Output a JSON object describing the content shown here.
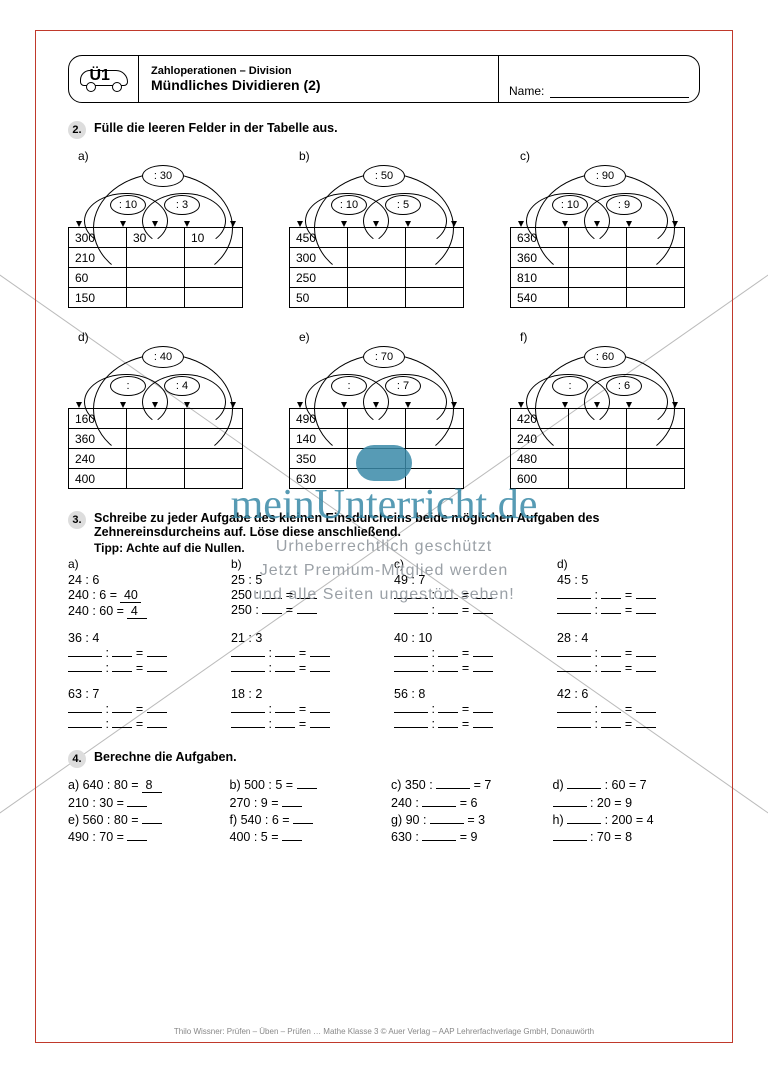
{
  "header": {
    "badge": "Ü1",
    "subtitle": "Zahloperationen – Division",
    "title": "Mündliches Dividieren (2)",
    "name_label": "Name:"
  },
  "task2": {
    "number": "2.",
    "instruction": "Fülle die leeren Felder in der Tabelle aus.",
    "blocks": [
      {
        "label": "a)",
        "top": ": 30",
        "midL": ": 10",
        "midR": ": 3",
        "rows": [
          [
            "300",
            "30",
            "10"
          ],
          [
            "210",
            "",
            ""
          ],
          [
            "60",
            "",
            ""
          ],
          [
            "150",
            "",
            ""
          ]
        ]
      },
      {
        "label": "b)",
        "top": ": 50",
        "midL": ": 10",
        "midR": ": 5",
        "rows": [
          [
            "450",
            "",
            ""
          ],
          [
            "300",
            "",
            ""
          ],
          [
            "250",
            "",
            ""
          ],
          [
            "50",
            "",
            ""
          ]
        ]
      },
      {
        "label": "c)",
        "top": ": 90",
        "midL": ": 10",
        "midR": ": 9",
        "rows": [
          [
            "630",
            "",
            ""
          ],
          [
            "360",
            "",
            ""
          ],
          [
            "810",
            "",
            ""
          ],
          [
            "540",
            "",
            ""
          ]
        ]
      },
      {
        "label": "d)",
        "top": ": 40",
        "midL": ":",
        "midR": ": 4",
        "rows": [
          [
            "160",
            "",
            ""
          ],
          [
            "360",
            "",
            ""
          ],
          [
            "240",
            "",
            ""
          ],
          [
            "400",
            "",
            ""
          ]
        ]
      },
      {
        "label": "e)",
        "top": ": 70",
        "midL": ":",
        "midR": ": 7",
        "rows": [
          [
            "490",
            "",
            ""
          ],
          [
            "140",
            "",
            ""
          ],
          [
            "350",
            "",
            ""
          ],
          [
            "630",
            "",
            ""
          ]
        ]
      },
      {
        "label": "f)",
        "top": ": 60",
        "midL": ":",
        "midR": ": 6",
        "rows": [
          [
            "420",
            "",
            ""
          ],
          [
            "240",
            "",
            ""
          ],
          [
            "480",
            "",
            ""
          ],
          [
            "600",
            "",
            ""
          ]
        ]
      }
    ]
  },
  "task3": {
    "number": "3.",
    "instruction": "Schreibe zu jeder Aufgabe des kleinen Einsdurcheins beide möglichen Aufgaben des Zehnereinsdurcheins auf. Löse diese anschließend.",
    "tip": "Tipp: Achte auf die Nullen.",
    "cols": [
      {
        "sub": "a)",
        "base": "24 : 6",
        "l1_lhs": "240 : 6 =",
        "l1_ans": "40",
        "l2_lhs": "240 : 60 =",
        "l2_ans": "4"
      },
      {
        "sub": "b)",
        "base": "25 : 5",
        "l1_lhs": "250 : ___ =",
        "l1_ans": "",
        "l2_lhs": "250 : ___ =",
        "l2_ans": ""
      },
      {
        "sub": "c)",
        "base": "49 : 7",
        "l1_lhs": "___ : ___ =",
        "l1_ans": "",
        "l2_lhs": "___ : ___ =",
        "l2_ans": ""
      },
      {
        "sub": "d)",
        "base": "45 : 5",
        "l1_lhs": "___ : ___ =",
        "l1_ans": "",
        "l2_lhs": "___ : ___ =",
        "l2_ans": ""
      }
    ],
    "groups": [
      [
        "36 : 4",
        "21 : 3",
        "40 : 10",
        "28 : 4"
      ],
      [
        "63 : 7",
        "18 : 2",
        "56 : 8",
        "42 : 6"
      ]
    ]
  },
  "task4": {
    "number": "4.",
    "instruction": "Berechne die Aufgaben.",
    "rows": [
      [
        {
          "t": "a) 640 : 80 =",
          "a": "8"
        },
        {
          "t": "b) 500 : 5 =",
          "a": ""
        },
        {
          "t": "c) 350 : ___ = 7",
          "a": ""
        },
        {
          "t": "d) ___ : 60 = 7",
          "a": ""
        }
      ],
      [
        {
          "t": "   210 : 30 =",
          "a": ""
        },
        {
          "t": "   270 : 9 =",
          "a": ""
        },
        {
          "t": "   240 : ___ = 6",
          "a": ""
        },
        {
          "t": "   ___ : 20 = 9",
          "a": ""
        }
      ],
      [
        {
          "t": "e) 560 : 80 =",
          "a": ""
        },
        {
          "t": "f) 540 : 6 =",
          "a": ""
        },
        {
          "t": "g)  90 : ___ = 3",
          "a": ""
        },
        {
          "t": "h) ___ : 200 = 4",
          "a": ""
        }
      ],
      [
        {
          "t": "   490 : 70 =",
          "a": ""
        },
        {
          "t": "   400 : 5 =",
          "a": ""
        },
        {
          "t": "   630 : ___ = 9",
          "a": ""
        },
        {
          "t": "   ___ : 70 = 8",
          "a": ""
        }
      ]
    ]
  },
  "watermark": {
    "logo": "meinUnterricht.de",
    "line1": "Urheberrechtlich geschützt",
    "line2": "Jetzt Premium-Mitglied werden",
    "line3": "und alle Seiten ungestört sehen!"
  },
  "footer": "Thilo Wissner: Prüfen – Üben – Prüfen … Mathe Klasse 3 © Auer Verlag – AAP Lehrerfachverlage GmbH, Donauwörth",
  "colors": {
    "border": "#c0392b",
    "watermark": "#3a8aa8",
    "wm_text": "#9aa0a6"
  }
}
